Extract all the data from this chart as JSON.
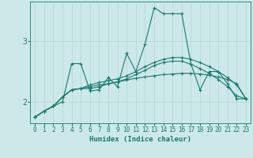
{
  "bg_color": "#cce8e8",
  "line_color": "#1a7a6e",
  "grid_color": "#b8d8d8",
  "xlabel": "Humidex (Indice chaleur)",
  "xlim": [
    -0.5,
    23.5
  ],
  "ylim": [
    1.65,
    3.65
  ],
  "yticks": [
    2,
    3
  ],
  "xticks": [
    0,
    1,
    2,
    3,
    4,
    5,
    6,
    7,
    8,
    9,
    10,
    11,
    12,
    13,
    14,
    15,
    16,
    17,
    18,
    19,
    20,
    21,
    22,
    23
  ],
  "series": [
    [
      1.75,
      1.85,
      1.93,
      2.0,
      2.63,
      2.63,
      2.18,
      2.2,
      2.4,
      2.25,
      2.8,
      2.5,
      2.95,
      3.55,
      3.45,
      3.45,
      3.45,
      2.63,
      2.2,
      2.5,
      2.5,
      2.3,
      2.05,
      2.05
    ],
    [
      1.75,
      1.85,
      1.93,
      2.08,
      2.2,
      2.22,
      2.22,
      2.25,
      2.3,
      2.33,
      2.36,
      2.39,
      2.41,
      2.43,
      2.45,
      2.46,
      2.47,
      2.47,
      2.46,
      2.44,
      2.41,
      2.37,
      2.3,
      2.05
    ],
    [
      1.75,
      1.85,
      1.93,
      2.08,
      2.2,
      2.22,
      2.28,
      2.32,
      2.35,
      2.38,
      2.43,
      2.5,
      2.58,
      2.65,
      2.7,
      2.73,
      2.73,
      2.7,
      2.65,
      2.58,
      2.5,
      2.4,
      2.28,
      2.05
    ],
    [
      1.75,
      1.85,
      1.93,
      2.08,
      2.2,
      2.22,
      2.25,
      2.28,
      2.3,
      2.33,
      2.38,
      2.45,
      2.52,
      2.6,
      2.65,
      2.67,
      2.67,
      2.62,
      2.55,
      2.47,
      2.37,
      2.25,
      2.1,
      2.05
    ]
  ],
  "figsize": [
    3.2,
    2.0
  ],
  "dpi": 100
}
